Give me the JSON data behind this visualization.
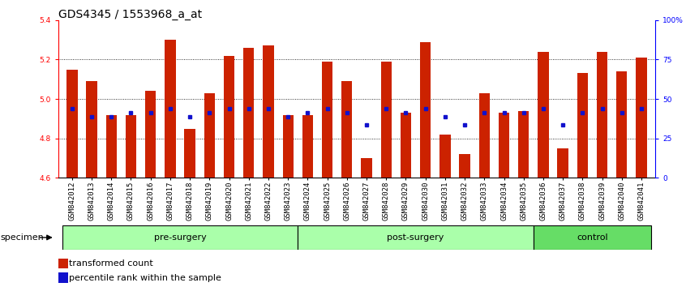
{
  "title": "GDS4345 / 1553968_a_at",
  "samples": [
    "GSM842012",
    "GSM842013",
    "GSM842014",
    "GSM842015",
    "GSM842016",
    "GSM842017",
    "GSM842018",
    "GSM842019",
    "GSM842020",
    "GSM842021",
    "GSM842022",
    "GSM842023",
    "GSM842024",
    "GSM842025",
    "GSM842026",
    "GSM842027",
    "GSM842028",
    "GSM842029",
    "GSM842030",
    "GSM842031",
    "GSM842032",
    "GSM842033",
    "GSM842034",
    "GSM842035",
    "GSM842036",
    "GSM842037",
    "GSM842038",
    "GSM842039",
    "GSM842040",
    "GSM842041"
  ],
  "red_values": [
    5.15,
    5.09,
    4.92,
    4.92,
    5.04,
    5.3,
    4.85,
    5.03,
    5.22,
    5.26,
    5.27,
    4.92,
    4.92,
    5.19,
    5.09,
    4.7,
    5.19,
    4.93,
    5.29,
    4.82,
    4.72,
    5.03,
    4.93,
    4.94,
    5.24,
    4.75,
    5.13,
    5.24,
    5.14,
    5.21
  ],
  "blue_values": [
    4.95,
    4.91,
    4.91,
    4.93,
    4.93,
    4.95,
    4.91,
    4.93,
    4.95,
    4.95,
    4.95,
    4.91,
    4.93,
    4.95,
    4.93,
    4.87,
    4.95,
    4.93,
    4.95,
    4.91,
    4.87,
    4.93,
    4.93,
    4.93,
    4.95,
    4.87,
    4.93,
    4.95,
    4.93,
    4.95
  ],
  "group_info": [
    {
      "name": "pre-surgery",
      "start": 0,
      "end": 12,
      "color": "#aaffaa"
    },
    {
      "name": "post-surgery",
      "start": 12,
      "end": 24,
      "color": "#aaffaa"
    },
    {
      "name": "control",
      "start": 24,
      "end": 30,
      "color": "#66dd66"
    }
  ],
  "ylim": [
    4.6,
    5.4
  ],
  "yticks_left": [
    4.6,
    4.8,
    5.0,
    5.2,
    5.4
  ],
  "yticks_right_vals": [
    0,
    25,
    50,
    75,
    100
  ],
  "yticks_right_labels": [
    "0",
    "25",
    "50",
    "75",
    "100%"
  ],
  "bar_color": "#CC2200",
  "blue_color": "#1111CC",
  "bar_width": 0.55,
  "legend_red": "transformed count",
  "legend_blue": "percentile rank within the sample",
  "title_fontsize": 10,
  "tick_fontsize": 6.5,
  "group_fontsize": 8,
  "legend_fontsize": 8
}
